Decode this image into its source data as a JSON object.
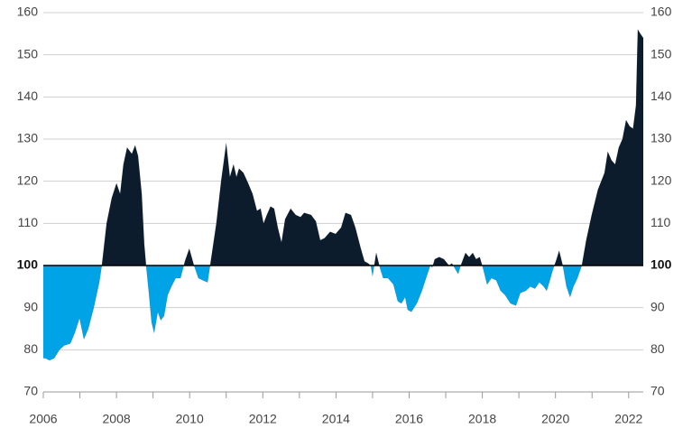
{
  "chart_data": {
    "type": "area",
    "x": [
      2006.0,
      2006.05,
      2006.17,
      2006.3,
      2006.44,
      2006.57,
      2006.74,
      2006.86,
      2006.99,
      2007.11,
      2007.23,
      2007.38,
      2007.53,
      2007.6,
      2007.73,
      2007.87,
      2008.0,
      2008.1,
      2008.19,
      2008.29,
      2008.42,
      2008.51,
      2008.59,
      2008.69,
      2008.76,
      2008.81,
      2008.88,
      2008.96,
      2009.03,
      2009.13,
      2009.21,
      2009.3,
      2009.4,
      2009.5,
      2009.62,
      2009.75,
      2009.87,
      2009.99,
      2010.12,
      2010.24,
      2010.36,
      2010.49,
      2010.56,
      2010.73,
      2010.86,
      2011.0,
      2011.1,
      2011.2,
      2011.28,
      2011.35,
      2011.47,
      2011.6,
      2011.72,
      2011.84,
      2011.94,
      2012.02,
      2012.11,
      2012.21,
      2012.31,
      2012.41,
      2012.51,
      2012.61,
      2012.76,
      2012.9,
      2013.03,
      2013.13,
      2013.32,
      2013.45,
      2013.57,
      2013.69,
      2013.84,
      2013.99,
      2014.14,
      2014.26,
      2014.41,
      2014.53,
      2014.68,
      2014.78,
      2014.88,
      2014.95,
      2015.0,
      2015.1,
      2015.2,
      2015.29,
      2015.42,
      2015.57,
      2015.69,
      2015.79,
      2015.89,
      2015.96,
      2016.06,
      2016.21,
      2016.35,
      2016.5,
      2016.58,
      2016.63,
      2016.7,
      2016.82,
      2016.95,
      2017.09,
      2017.17,
      2017.27,
      2017.34,
      2017.41,
      2017.54,
      2017.64,
      2017.74,
      2017.83,
      2017.93,
      2018.03,
      2018.13,
      2018.25,
      2018.38,
      2018.5,
      2018.62,
      2018.77,
      2018.92,
      2019.04,
      2019.19,
      2019.31,
      2019.44,
      2019.56,
      2019.68,
      2019.76,
      2019.83,
      2019.93,
      2020.03,
      2020.1,
      2020.2,
      2020.3,
      2020.4,
      2020.49,
      2020.6,
      2020.72,
      2020.84,
      2020.99,
      2021.16,
      2021.34,
      2021.43,
      2021.53,
      2021.63,
      2021.73,
      2021.83,
      2021.93,
      2022.03,
      2022.12,
      2022.2,
      2022.25,
      2022.32,
      2022.4
    ],
    "values": [
      78,
      78,
      77.5,
      78,
      80,
      81,
      81.5,
      84,
      87.5,
      82.5,
      85,
      90,
      96,
      100,
      110,
      116,
      119.5,
      117,
      124,
      128,
      126.5,
      128.5,
      126,
      117,
      105,
      100,
      94,
      86.5,
      84,
      89,
      87,
      88,
      93,
      95,
      97,
      97,
      101,
      104,
      100,
      97,
      96.5,
      96,
      100,
      110,
      120,
      129,
      121,
      124,
      121,
      123,
      122,
      119.5,
      117,
      113,
      113.5,
      110,
      112,
      114,
      113.5,
      109,
      105.5,
      111,
      113.5,
      112,
      111.5,
      112.5,
      112,
      110.5,
      106,
      106.5,
      108,
      107.5,
      109,
      112.5,
      112,
      109,
      104,
      101,
      100.5,
      100,
      97.5,
      103,
      99.5,
      97,
      97,
      95.5,
      91.5,
      91,
      92.5,
      89.5,
      89,
      91,
      94,
      98,
      100,
      99.5,
      101.5,
      102,
      101.5,
      100,
      100.5,
      99,
      98,
      100,
      103,
      102,
      103,
      101.5,
      102,
      99,
      95.5,
      97,
      96.5,
      94,
      93,
      91,
      90.5,
      93.5,
      94,
      95,
      94.5,
      96,
      95,
      94,
      96,
      99,
      101.5,
      103.5,
      100,
      95,
      92.5,
      95,
      97,
      100,
      106,
      112,
      118,
      122,
      127,
      125,
      124,
      128,
      130,
      134.5,
      133,
      132.5,
      138,
      156,
      155,
      154
    ],
    "baseline": 100,
    "color_above": "#0c1c2c",
    "color_below": "#00a3e6",
    "xlim": [
      2006,
      2022.4
    ],
    "xticks": [
      2006,
      2008,
      2010,
      2012,
      2014,
      2016,
      2018,
      2020,
      2022
    ],
    "minor_xticks": [
      2007,
      2009,
      2011,
      2013,
      2015,
      2017,
      2019,
      2021
    ],
    "ylim": [
      70,
      160
    ],
    "yticks": [
      70,
      80,
      90,
      100,
      110,
      120,
      130,
      140,
      150,
      160
    ],
    "y2lim": [
      70,
      160
    ],
    "y2ticks": [
      70,
      80,
      90,
      100,
      110,
      120,
      130,
      140,
      150,
      160
    ],
    "grid": true
  }
}
